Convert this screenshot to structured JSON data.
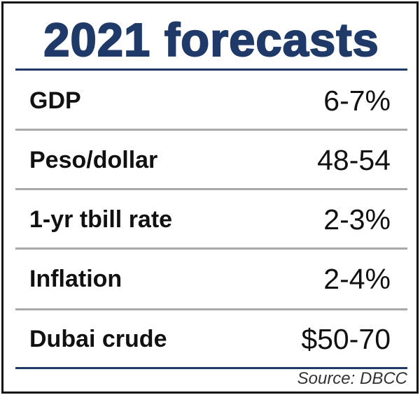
{
  "title": "2021 forecasts",
  "rows": [
    {
      "label": "GDP",
      "value": "6-7%"
    },
    {
      "label": "Peso/dollar",
      "value": "48-54"
    },
    {
      "label": "1-yr tbill rate",
      "value": "2-3%"
    },
    {
      "label": "Inflation",
      "value": "2-4%"
    },
    {
      "label": "Dubai crude",
      "value": "$50-70"
    }
  ],
  "source": "Source: DBCC",
  "colors": {
    "title": "#1f3a68",
    "divider": "#a9a9a9"
  }
}
